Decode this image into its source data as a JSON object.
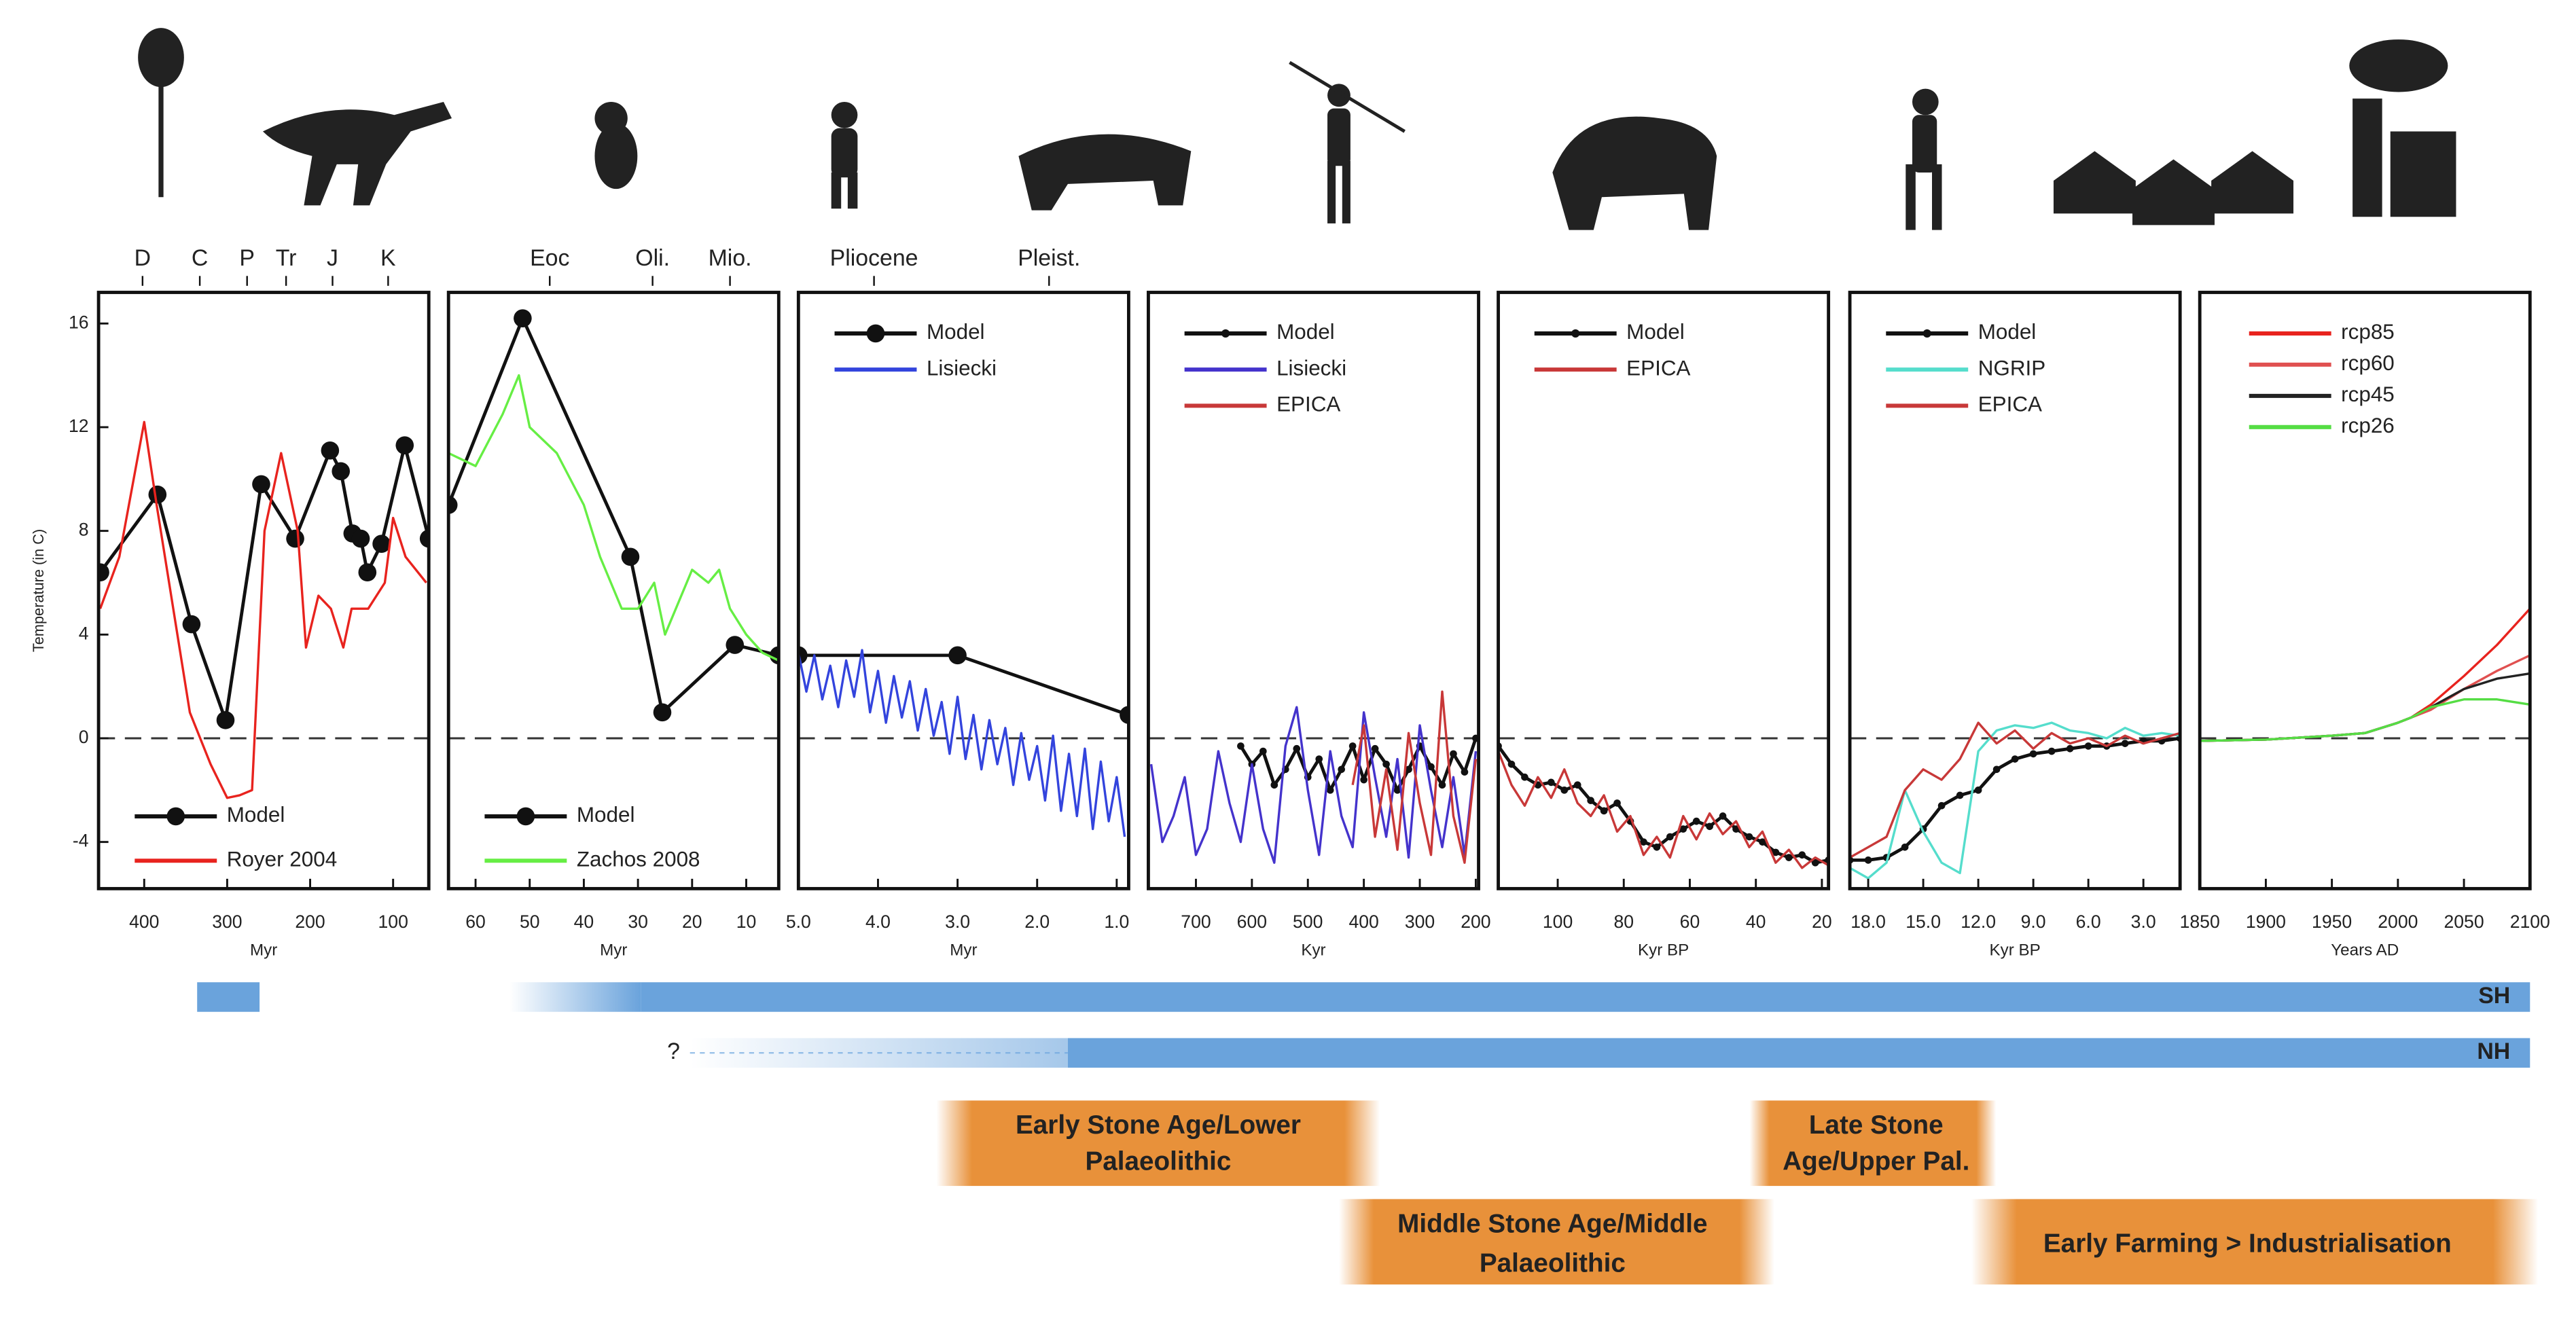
{
  "chart_data": [
    {
      "type": "line",
      "xlabel": "Myr",
      "ylabel": "Temperature (in C)",
      "xlim": [
        455,
        57
      ],
      "xticks": [
        400,
        300,
        200,
        100
      ],
      "ylim": [
        -5.8,
        17.2
      ],
      "yticks": [
        -4,
        0,
        4,
        8,
        12,
        16
      ],
      "zero_line": true,
      "legend": "lower-left",
      "top_labels": [
        {
          "value": 402,
          "label": "D"
        },
        {
          "value": 333,
          "label": "C"
        },
        {
          "value": 276,
          "label": "P"
        },
        {
          "value": 229,
          "label": "Tr"
        },
        {
          "value": 173,
          "label": "J"
        },
        {
          "value": 106,
          "label": "K"
        }
      ],
      "series": [
        {
          "name": "Model",
          "color": "#111111",
          "marker": "large",
          "x": [
            453,
            384,
            343,
            302,
            259,
            218,
            176,
            163,
            149,
            139,
            131,
            114,
            86,
            57
          ],
          "values": [
            6.4,
            9.4,
            4.4,
            0.7,
            9.8,
            7.7,
            11.1,
            10.3,
            7.9,
            7.7,
            6.4,
            7.5,
            11.3,
            7.7
          ]
        },
        {
          "name": "Royer 2004",
          "color": "#e8231e",
          "x": [
            453,
            430,
            400,
            385,
            360,
            345,
            320,
            300,
            285,
            270,
            255,
            235,
            215,
            205,
            190,
            175,
            160,
            150,
            130,
            110,
            100,
            85,
            60
          ],
          "values": [
            5,
            7,
            12.2,
            9,
            4,
            1,
            -1,
            -2.3,
            -2.2,
            -2,
            8,
            11,
            8,
            3.5,
            5.5,
            5,
            3.5,
            5,
            5,
            6,
            8.5,
            7,
            6
          ]
        }
      ]
    },
    {
      "type": "line",
      "xlabel": "Myr",
      "xlim": [
        65,
        4
      ],
      "xticks": [
        60,
        50,
        40,
        30,
        20,
        10
      ],
      "ylim": [
        -5.8,
        17.2
      ],
      "zero_line": true,
      "legend": "lower-left",
      "top_labels": [
        {
          "value": 46.3,
          "label": "Eoc"
        },
        {
          "value": 27.3,
          "label": "Oli."
        },
        {
          "value": 13,
          "label": "Mio."
        }
      ],
      "series": [
        {
          "name": "Model",
          "color": "#111111",
          "marker": "large",
          "x": [
            65,
            51.3,
            31.4,
            25.5,
            12.1,
            4
          ],
          "values": [
            9,
            16.2,
            7,
            1,
            3.6,
            3.2
          ]
        },
        {
          "name": "Zachos 2008",
          "color": "#66ee44",
          "x": [
            65,
            60,
            55,
            52,
            50,
            45,
            40,
            37,
            35,
            33,
            30,
            27,
            25,
            20,
            17,
            15,
            13,
            10,
            7,
            4
          ],
          "values": [
            11,
            10.5,
            12.5,
            14,
            12,
            11,
            9,
            7,
            6,
            5,
            5,
            6,
            4,
            6.5,
            6,
            6.5,
            5,
            4,
            3.3,
            3
          ]
        }
      ]
    },
    {
      "type": "line",
      "xlabel": "Myr",
      "xlim": [
        5,
        0.85
      ],
      "xticks": [
        {
          "value": 5,
          "label": "5.0"
        },
        {
          "value": 4,
          "label": "4.0"
        },
        {
          "value": 3,
          "label": "3.0"
        },
        {
          "value": 2,
          "label": "2.0"
        },
        {
          "value": 1,
          "label": "1.0"
        }
      ],
      "ylim": [
        -5.8,
        17.2
      ],
      "zero_line": true,
      "legend": "upper-left",
      "top_labels": [
        {
          "value": 4.05,
          "label": "Pliocene"
        },
        {
          "value": 1.85,
          "label": "Pleist."
        }
      ],
      "series": [
        {
          "name": "Model",
          "color": "#111111",
          "marker": "large",
          "x": [
            5,
            3,
            0.85
          ],
          "values": [
            3.2,
            3.2,
            0.9
          ]
        },
        {
          "name": "Lisiecki",
          "color": "#3344dd",
          "x": [
            5.0,
            4.9,
            4.8,
            4.7,
            4.6,
            4.5,
            4.4,
            4.3,
            4.2,
            4.1,
            4.0,
            3.9,
            3.8,
            3.7,
            3.6,
            3.5,
            3.4,
            3.3,
            3.2,
            3.1,
            3.0,
            2.9,
            2.8,
            2.7,
            2.6,
            2.5,
            2.4,
            2.3,
            2.2,
            2.1,
            2.0,
            1.9,
            1.8,
            1.7,
            1.6,
            1.5,
            1.4,
            1.3,
            1.2,
            1.1,
            1.0,
            0.9
          ],
          "values": [
            3.3,
            1.8,
            3.2,
            1.5,
            2.8,
            1.2,
            3.0,
            1.6,
            3.4,
            1.0,
            2.6,
            0.6,
            2.4,
            0.8,
            2.2,
            0.3,
            1.9,
            0.1,
            1.4,
            -0.6,
            1.6,
            -0.8,
            0.9,
            -1.2,
            0.7,
            -1.0,
            0.4,
            -1.8,
            0.2,
            -1.6,
            -0.3,
            -2.4,
            0.1,
            -2.8,
            -0.6,
            -3.0,
            -0.4,
            -3.5,
            -0.9,
            -3.2,
            -1.5,
            -3.8
          ]
        }
      ]
    },
    {
      "type": "line",
      "xlabel": "Kyr",
      "xlim": [
        785,
        195
      ],
      "xticks": [
        700,
        600,
        500,
        400,
        300,
        200
      ],
      "ylim": [
        -5.8,
        17.2
      ],
      "zero_line": true,
      "legend": "upper-left",
      "series": [
        {
          "name": "Model",
          "color": "#111111",
          "marker": "small",
          "x": [
            780,
            760,
            740,
            720,
            700,
            680,
            660,
            640,
            620,
            600,
            580,
            560,
            540,
            520,
            500,
            480,
            460,
            440,
            420,
            400,
            380,
            360,
            340,
            320,
            300,
            280,
            260,
            240,
            220,
            200
          ],
          "values": [
            null,
            null,
            null,
            null,
            null,
            null,
            null,
            null,
            -0.3,
            -1,
            -0.5,
            -1.8,
            -1.2,
            -0.4,
            -1.5,
            -0.8,
            -2,
            -1.2,
            -0.3,
            -1.6,
            -0.4,
            -1,
            -2,
            -1.2,
            -0.3,
            -1.1,
            -1.8,
            -0.6,
            -1.3,
            0
          ]
        },
        {
          "name": "Lisiecki",
          "color": "#4433cc",
          "x": [
            780,
            760,
            740,
            720,
            700,
            680,
            660,
            640,
            620,
            600,
            580,
            560,
            540,
            520,
            500,
            480,
            460,
            440,
            420,
            400,
            380,
            360,
            340,
            320,
            300,
            280,
            260,
            240,
            220,
            200
          ],
          "values": [
            -1,
            -4,
            -3,
            -1.5,
            -4.5,
            -3.5,
            -0.5,
            -2.5,
            -4,
            -1,
            -3.5,
            -4.8,
            -0.3,
            1.2,
            -2,
            -4.5,
            -0.5,
            -3,
            -4.2,
            1.0,
            -1.5,
            -3.8,
            -0.8,
            -4.6,
            0.5,
            -2,
            -4.2,
            -1.5,
            -4.5,
            -0.5
          ]
        },
        {
          "name": "EPICA",
          "color": "#c83838",
          "x": [
            780,
            760,
            740,
            720,
            700,
            680,
            660,
            640,
            620,
            600,
            580,
            560,
            540,
            520,
            500,
            480,
            460,
            440,
            420,
            400,
            380,
            360,
            340,
            320,
            300,
            280,
            260,
            240,
            220,
            200
          ],
          "values": [
            null,
            null,
            null,
            null,
            null,
            null,
            null,
            null,
            null,
            null,
            null,
            null,
            null,
            null,
            null,
            null,
            null,
            null,
            -1.8,
            0.5,
            -3.8,
            -1.2,
            -4.3,
            0.2,
            -2.5,
            -4.5,
            1.8,
            -3,
            -4.8,
            -0.8
          ]
        }
      ]
    },
    {
      "type": "line",
      "xlabel": "Kyr BP",
      "xlim": [
        118,
        18
      ],
      "xticks": [
        100,
        80,
        60,
        40,
        20
      ],
      "ylim": [
        -5.8,
        17.2
      ],
      "zero_line": true,
      "legend": "upper-left",
      "series": [
        {
          "name": "Model",
          "color": "#111111",
          "marker": "small",
          "x": [
            118,
            114,
            110,
            106,
            102,
            98,
            94,
            90,
            86,
            82,
            78,
            74,
            70,
            66,
            62,
            58,
            54,
            50,
            46,
            42,
            38,
            34,
            30,
            26,
            22,
            18
          ],
          "values": [
            -0.3,
            -1.0,
            -1.5,
            -1.8,
            -1.7,
            -2.0,
            -1.8,
            -2.4,
            -2.8,
            -2.5,
            -3.2,
            -4.0,
            -4.2,
            -3.8,
            -3.5,
            -3.2,
            -3.4,
            -3.0,
            -3.5,
            -3.8,
            -4.0,
            -4.4,
            -4.6,
            -4.5,
            -4.8,
            -4.7
          ]
        },
        {
          "name": "EPICA",
          "color": "#c83838",
          "x": [
            118,
            114,
            110,
            106,
            102,
            98,
            94,
            90,
            86,
            82,
            78,
            74,
            70,
            66,
            62,
            58,
            54,
            50,
            46,
            42,
            38,
            34,
            30,
            26,
            22,
            18
          ],
          "values": [
            -0.5,
            -1.8,
            -2.6,
            -1.5,
            -2.3,
            -1.2,
            -2.5,
            -3.0,
            -2.2,
            -3.6,
            -3.0,
            -4.5,
            -3.8,
            -4.6,
            -3.0,
            -3.9,
            -2.9,
            -3.7,
            -3.2,
            -4.2,
            -3.6,
            -4.8,
            -4.3,
            -5.0,
            -4.6,
            -4.9
          ]
        }
      ]
    },
    {
      "type": "line",
      "xlabel": "Kyr BP",
      "xlim": [
        19,
        1
      ],
      "xticks": [
        {
          "value": 18,
          "label": "18.0"
        },
        {
          "value": 15,
          "label": "15.0"
        },
        {
          "value": 12,
          "label": "12.0"
        },
        {
          "value": 9,
          "label": "9.0"
        },
        {
          "value": 6,
          "label": "6.0"
        },
        {
          "value": 3,
          "label": "3.0"
        }
      ],
      "ylim": [
        -5.8,
        17.2
      ],
      "zero_line": true,
      "legend": "upper-left",
      "series": [
        {
          "name": "Model",
          "color": "#111111",
          "marker": "small",
          "x": [
            19,
            18,
            17,
            16,
            15,
            14,
            13,
            12,
            11,
            10,
            9,
            8,
            7,
            6,
            5,
            4,
            3,
            2,
            1
          ],
          "values": [
            -4.7,
            -4.7,
            -4.6,
            -4.2,
            -3.5,
            -2.6,
            -2.2,
            -2.0,
            -1.2,
            -0.8,
            -0.6,
            -0.5,
            -0.4,
            -0.3,
            -0.3,
            -0.2,
            -0.1,
            -0.1,
            0
          ]
        },
        {
          "name": "NGRIP",
          "color": "#55ddcc",
          "x": [
            19,
            18,
            17,
            16,
            15,
            14,
            13,
            12,
            11,
            10,
            9,
            8,
            7,
            6,
            5,
            4,
            3,
            2,
            1
          ],
          "values": [
            -5.0,
            -5.4,
            -4.8,
            -2.0,
            -3.6,
            -4.8,
            -5.2,
            -0.5,
            0.3,
            0.5,
            0.4,
            0.6,
            0.3,
            0.2,
            0.0,
            0.4,
            0.1,
            0.2,
            0.1
          ]
        },
        {
          "name": "EPICA",
          "color": "#c83838",
          "x": [
            19,
            18,
            17,
            16,
            15,
            14,
            13,
            12,
            11,
            10,
            9,
            8,
            7,
            6,
            5,
            4,
            3,
            2,
            1
          ],
          "values": [
            -4.6,
            -4.2,
            -3.8,
            -2.0,
            -1.2,
            -1.6,
            -0.8,
            0.6,
            -0.2,
            0.3,
            -0.4,
            0.2,
            -0.2,
            0.0,
            -0.3,
            0.1,
            -0.2,
            0.0,
            0.2
          ]
        }
      ]
    },
    {
      "type": "line",
      "xlabel": "Years AD",
      "xlim": [
        1850,
        2100
      ],
      "xticks": [
        1850,
        1900,
        1950,
        2000,
        2050,
        2100
      ],
      "ylim": [
        -5.8,
        17.2
      ],
      "zero_line": true,
      "legend": "upper-center",
      "series": [
        {
          "name": "rcp85",
          "color": "#e8231e",
          "x": [
            1850,
            1900,
            1950,
            1975,
            2000,
            2010,
            2025,
            2050,
            2075,
            2100
          ],
          "values": [
            -0.1,
            -0.05,
            0.1,
            0.2,
            0.6,
            0.8,
            1.3,
            2.4,
            3.6,
            5.0
          ]
        },
        {
          "name": "rcp60",
          "color": "#e05050",
          "x": [
            1850,
            1900,
            1950,
            1975,
            2000,
            2010,
            2025,
            2050,
            2075,
            2100
          ],
          "values": [
            -0.1,
            -0.05,
            0.1,
            0.2,
            0.6,
            0.8,
            1.1,
            1.9,
            2.6,
            3.2
          ]
        },
        {
          "name": "rcp45",
          "color": "#222222",
          "x": [
            1850,
            1900,
            1950,
            1975,
            2000,
            2010,
            2025,
            2050,
            2075,
            2100
          ],
          "values": [
            -0.1,
            -0.05,
            0.1,
            0.2,
            0.6,
            0.8,
            1.2,
            1.9,
            2.3,
            2.5
          ]
        },
        {
          "name": "rcp26",
          "color": "#55dd44",
          "x": [
            1850,
            1900,
            1950,
            1975,
            2000,
            2010,
            2025,
            2050,
            2075,
            2100
          ],
          "values": [
            -0.1,
            -0.05,
            0.1,
            0.2,
            0.6,
            0.8,
            1.2,
            1.5,
            1.5,
            1.3
          ]
        }
      ]
    }
  ],
  "hemispheres": [
    {
      "label": "SH"
    },
    {
      "label": "NH",
      "uncertain_label": "?"
    }
  ],
  "periods": [
    {
      "lines": [
        "Early Stone Age/Lower",
        "Palaeolithic"
      ]
    },
    {
      "lines": [
        "Middle Stone Age/Middle",
        "Palaeolithic"
      ]
    },
    {
      "lines": [
        "Late Stone",
        "Age/Upper Pal."
      ]
    },
    {
      "lines": [
        "Early Farming > Industrialisation"
      ]
    }
  ]
}
